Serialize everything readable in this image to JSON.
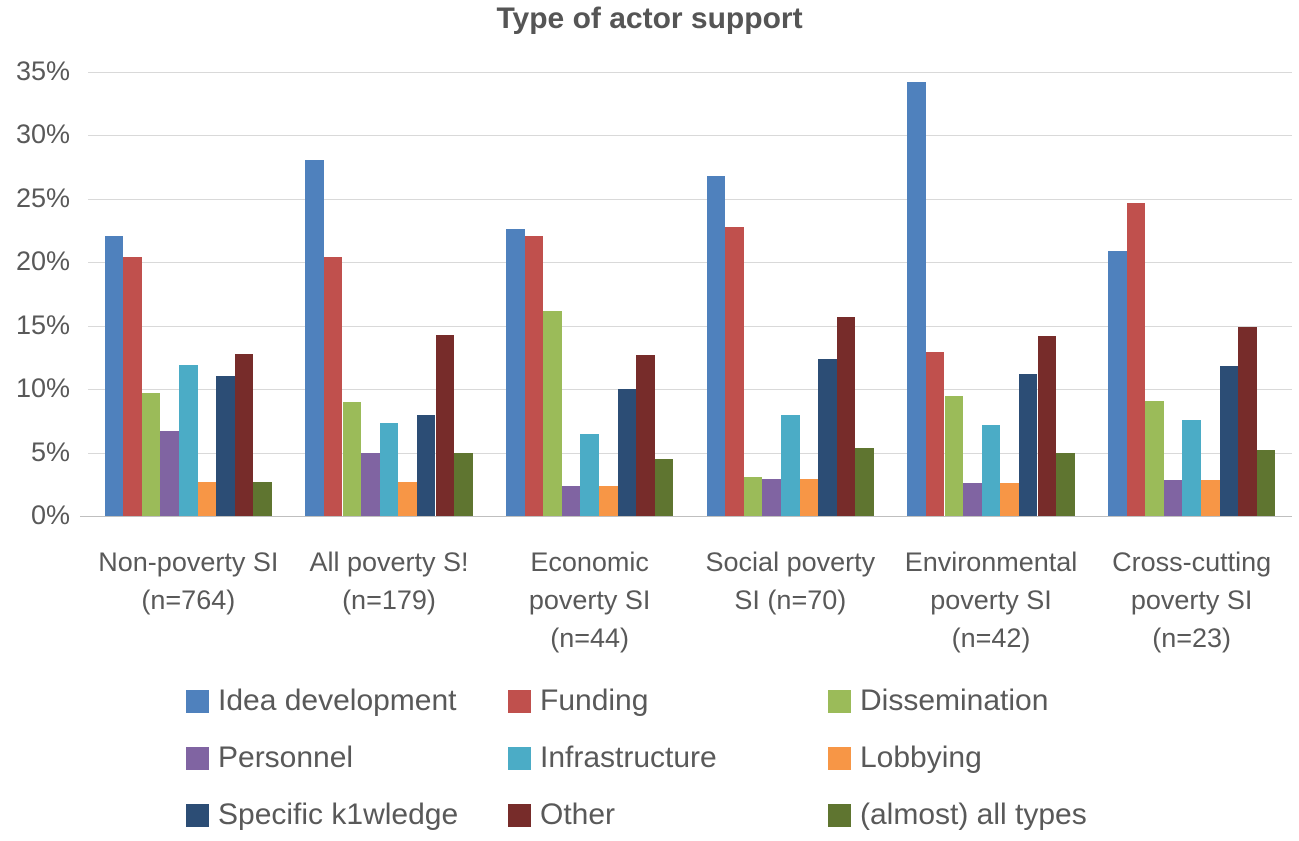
{
  "title": "Type of actor support",
  "chart_data": {
    "type": "bar",
    "title": "Type of actor support",
    "categories": [
      [
        "Non-poverty SI",
        "(n=764)"
      ],
      [
        "All poverty S!",
        "(n=179)"
      ],
      [
        "Economic",
        "poverty SI",
        "(n=44)"
      ],
      [
        "Social poverty",
        "SI (n=70)"
      ],
      [
        "Environmental",
        "poverty SI",
        "(n=42)"
      ],
      [
        "Cross-cutting",
        "poverty SI",
        "(n=23)"
      ]
    ],
    "series": [
      {
        "name": "Idea development",
        "color": "#4F81BD",
        "values": [
          22.1,
          28.1,
          22.6,
          26.8,
          34.2,
          20.9
        ]
      },
      {
        "name": "Funding",
        "color": "#C0504D",
        "values": [
          20.4,
          20.4,
          22.1,
          22.8,
          12.9,
          24.7
        ]
      },
      {
        "name": "Dissemination",
        "color": "#9BBB59",
        "values": [
          9.7,
          9.0,
          16.2,
          3.1,
          9.5,
          9.1
        ]
      },
      {
        "name": "Personnel",
        "color": "#8064A2",
        "values": [
          6.7,
          5.0,
          2.4,
          2.9,
          2.6,
          2.8
        ]
      },
      {
        "name": "Infrastructure",
        "color": "#4BACC6",
        "values": [
          11.9,
          7.3,
          6.5,
          8.0,
          7.2,
          7.6
        ]
      },
      {
        "name": "Lobbying",
        "color": "#F79646",
        "values": [
          2.7,
          2.7,
          2.4,
          2.9,
          2.6,
          2.8
        ]
      },
      {
        "name": "Specific k1wledge",
        "color": "#2C4D75",
        "values": [
          11.0,
          8.0,
          10.0,
          12.4,
          11.2,
          11.8
        ]
      },
      {
        "name": "Other",
        "color": "#772C2A",
        "values": [
          12.8,
          14.3,
          12.7,
          15.7,
          14.2,
          14.9
        ]
      },
      {
        "name": "(almost) all types",
        "color": "#5F7530",
        "values": [
          2.7,
          5.0,
          4.5,
          5.4,
          5.0,
          5.2
        ]
      }
    ],
    "ylim": [
      0,
      35
    ],
    "ytick_step": 5,
    "ytick_labels": [
      "0%",
      "5%",
      "10%",
      "15%",
      "20%",
      "25%",
      "30%",
      "35%"
    ],
    "grid": true,
    "legend_position": "bottom",
    "colors": {
      "grid": "#d9d9d9",
      "axis": "#bfbfbf",
      "text": "#595959",
      "background": "#ffffff"
    }
  }
}
